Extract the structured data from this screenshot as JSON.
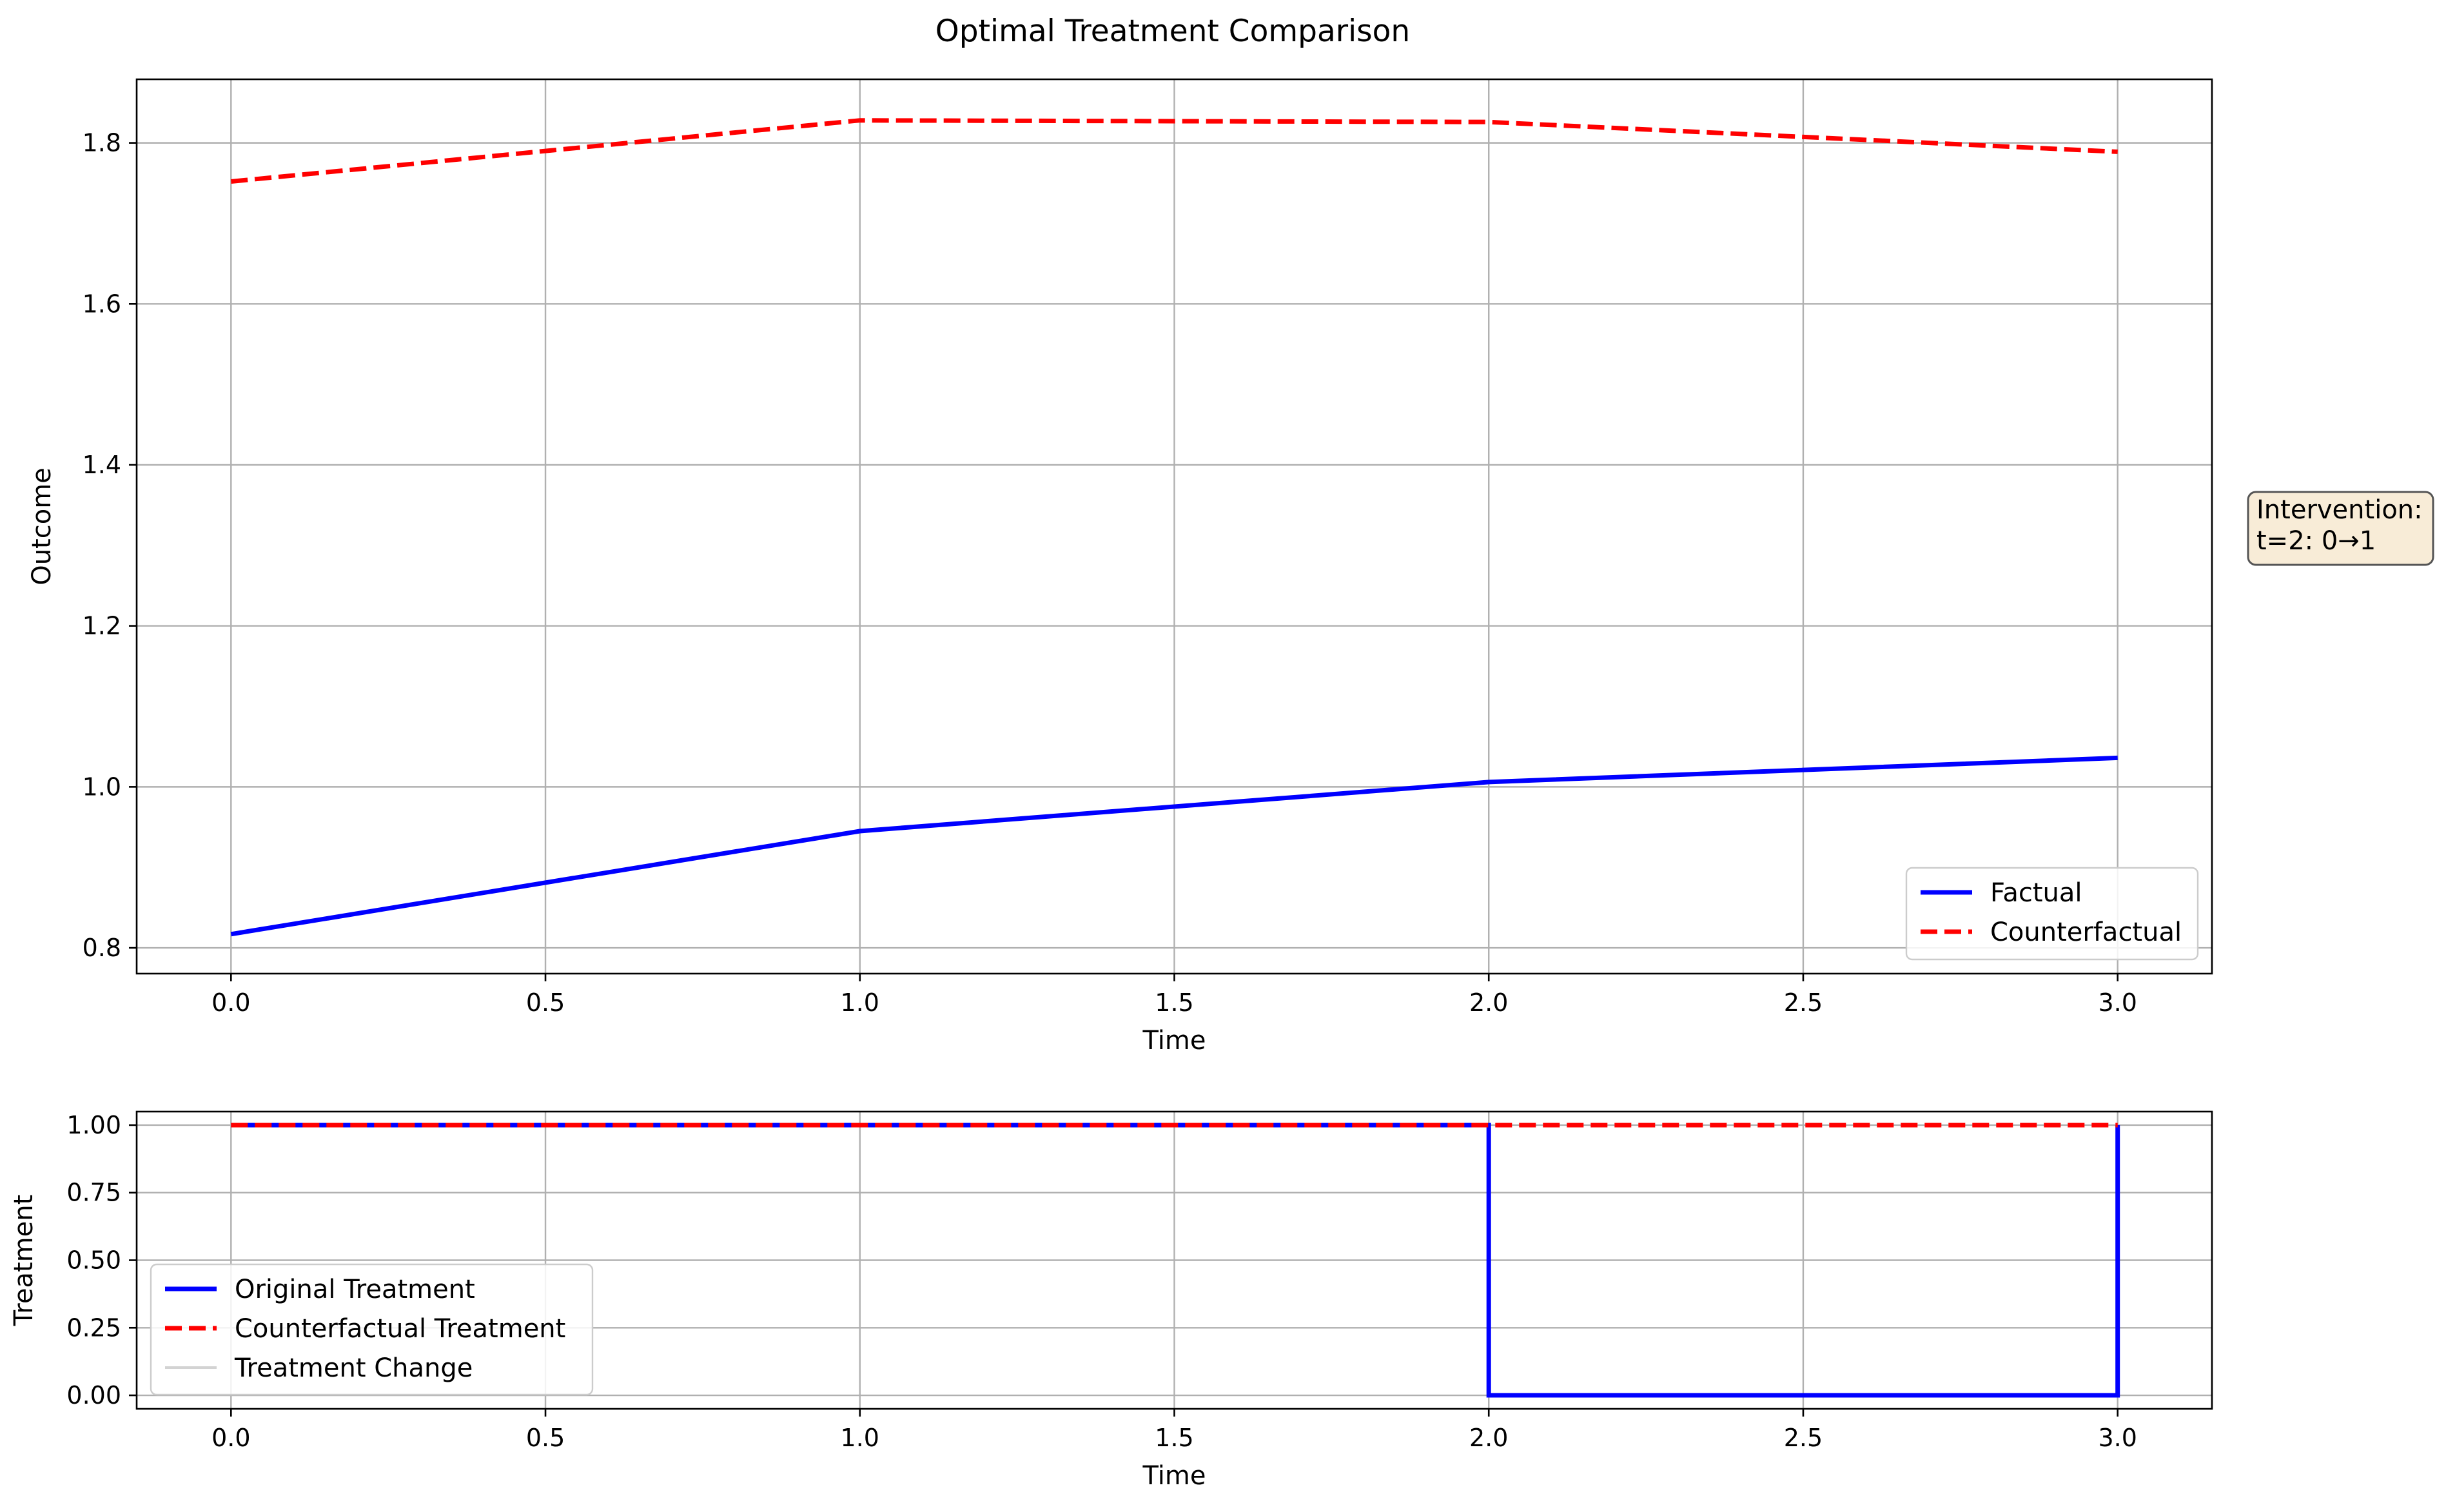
{
  "figure": {
    "title": "Optimal Treatment Comparison",
    "annotation": {
      "lines": [
        "Intervention:",
        "t=2: 0→1"
      ],
      "background": "#f8ecd7",
      "border": "#555555"
    }
  },
  "chart_data": [
    {
      "type": "line",
      "xlabel": "Time",
      "ylabel": "Outcome",
      "xlim": [
        -0.15,
        3.15
      ],
      "ylim": [
        0.768,
        1.879
      ],
      "xticks": [
        0.0,
        0.5,
        1.0,
        1.5,
        2.0,
        2.5,
        3.0
      ],
      "xtick_labels": [
        "0.0",
        "0.5",
        "1.0",
        "1.5",
        "2.0",
        "2.5",
        "3.0"
      ],
      "yticks": [
        0.8,
        1.0,
        1.2,
        1.4,
        1.6,
        1.8
      ],
      "ytick_labels": [
        "0.8",
        "1.0",
        "1.2",
        "1.4",
        "1.6",
        "1.8"
      ],
      "grid": true,
      "legend": "lower-right",
      "series": [
        {
          "name": "Factual",
          "color": "#0000ff",
          "style": "solid",
          "x": [
            0,
            1,
            2,
            3
          ],
          "y": [
            0.817,
            0.945,
            1.006,
            1.036
          ]
        },
        {
          "name": "Counterfactual",
          "color": "#ff0000",
          "style": "dashed",
          "x": [
            0,
            1,
            2,
            3
          ],
          "y": [
            1.752,
            1.828,
            1.826,
            1.789
          ]
        }
      ]
    },
    {
      "type": "line",
      "xlabel": "Time",
      "ylabel": "Treatment",
      "xlim": [
        -0.15,
        3.15
      ],
      "ylim": [
        -0.05,
        1.05
      ],
      "xticks": [
        0.0,
        0.5,
        1.0,
        1.5,
        2.0,
        2.5,
        3.0
      ],
      "xtick_labels": [
        "0.0",
        "0.5",
        "1.0",
        "1.5",
        "2.0",
        "2.5",
        "3.0"
      ],
      "yticks": [
        0.0,
        0.25,
        0.5,
        0.75,
        1.0
      ],
      "ytick_labels": [
        "0.00",
        "0.25",
        "0.50",
        "0.75",
        "1.00"
      ],
      "grid": true,
      "legend": "lower-left",
      "series": [
        {
          "name": "Original Treatment",
          "color": "#0000ff",
          "style": "solid",
          "step": "post",
          "x": [
            0,
            1,
            2,
            3
          ],
          "y": [
            1,
            1,
            0,
            1
          ]
        },
        {
          "name": "Counterfactual Treatment",
          "color": "#ff0000",
          "style": "dashed",
          "step": "post",
          "x": [
            0,
            1,
            2,
            3
          ],
          "y": [
            1,
            1,
            1,
            1
          ]
        },
        {
          "name": "Treatment Change",
          "color": "#d3d3d3",
          "style": "solid",
          "x": [],
          "y": []
        }
      ]
    }
  ]
}
